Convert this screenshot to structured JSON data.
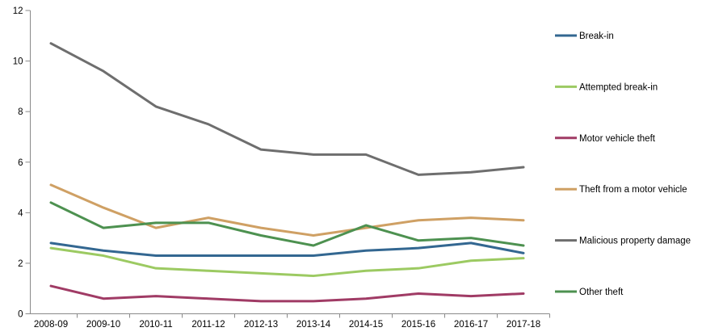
{
  "chart_data": {
    "type": "line",
    "title": "",
    "xlabel": "",
    "ylabel": "",
    "categories": [
      "2008-09",
      "2009-10",
      "2010-11",
      "2011-12",
      "2012-13",
      "2013-14",
      "2014-15",
      "2015-16",
      "2016-17",
      "2017-18"
    ],
    "series": [
      {
        "name": "Break-in",
        "color": "#336791",
        "values": [
          2.8,
          2.5,
          2.3,
          2.3,
          2.3,
          2.3,
          2.5,
          2.6,
          2.8,
          2.4
        ]
      },
      {
        "name": "Attempted break-in",
        "color": "#9cca62",
        "values": [
          2.6,
          2.3,
          1.8,
          1.7,
          1.6,
          1.5,
          1.7,
          1.8,
          2.1,
          2.2
        ]
      },
      {
        "name": "Motor vehicle theft",
        "color": "#a03b65",
        "values": [
          1.1,
          0.6,
          0.7,
          0.6,
          0.5,
          0.5,
          0.6,
          0.8,
          0.7,
          0.8
        ]
      },
      {
        "name": "Theft from a motor vehicle",
        "color": "#cfa064",
        "values": [
          5.1,
          4.2,
          3.4,
          3.8,
          3.4,
          3.1,
          3.4,
          3.7,
          3.8,
          3.7
        ]
      },
      {
        "name": "Malicious property damage",
        "color": "#6e6e6e",
        "values": [
          10.7,
          9.6,
          8.2,
          7.5,
          6.5,
          6.3,
          6.3,
          5.5,
          5.6,
          5.8
        ]
      },
      {
        "name": "Other theft",
        "color": "#4d9150",
        "values": [
          4.4,
          3.4,
          3.6,
          3.6,
          3.1,
          2.7,
          3.5,
          2.9,
          3.0,
          2.7
        ]
      }
    ],
    "ylim": [
      0,
      12
    ],
    "yticks": [
      0,
      2,
      4,
      6,
      8,
      10,
      12
    ],
    "grid": false,
    "legend_position": "right",
    "axis_color": "#8a8a8a",
    "text_color": "#000000"
  }
}
